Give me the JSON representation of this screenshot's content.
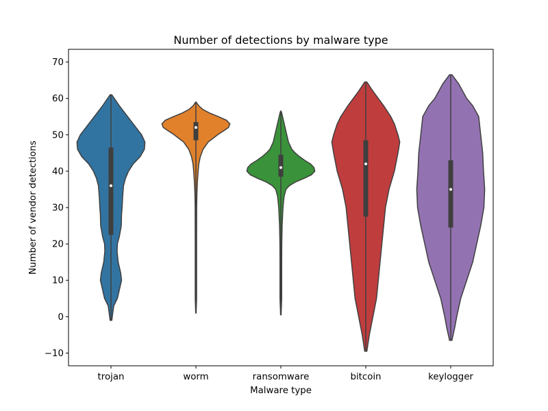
{
  "chart_data": {
    "type": "violin",
    "title": "Number of detections by malware type",
    "xlabel": "Malware type",
    "ylabel": "Number of vendor detections",
    "ylim": [
      -13.5,
      73.5
    ],
    "yticks": [
      -10,
      0,
      10,
      20,
      30,
      40,
      50,
      60,
      70
    ],
    "categories": [
      "trojan",
      "worm",
      "ransomware",
      "bitcoin",
      "keylogger"
    ],
    "violins": [
      {
        "category": "trojan",
        "color": "#3274a1",
        "median": 36,
        "q1": 22.5,
        "q3": 46.5,
        "min": -1,
        "max": 61,
        "profile": [
          [
            -1,
            0.3
          ],
          [
            3,
            1
          ],
          [
            5,
            2.3
          ],
          [
            8,
            3.2
          ],
          [
            10,
            3.8
          ],
          [
            12,
            3.5
          ],
          [
            15,
            2.6
          ],
          [
            18,
            2.2
          ],
          [
            20,
            2.3
          ],
          [
            22,
            3
          ],
          [
            25,
            3.7
          ],
          [
            28,
            3.8
          ],
          [
            30,
            4
          ],
          [
            33,
            4.2
          ],
          [
            36,
            4.5
          ],
          [
            38,
            5.2
          ],
          [
            40,
            6.3
          ],
          [
            42,
            8
          ],
          [
            44,
            10.5
          ],
          [
            46,
            12
          ],
          [
            48,
            12.2
          ],
          [
            50,
            11
          ],
          [
            52,
            9
          ],
          [
            54,
            7
          ],
          [
            56,
            5
          ],
          [
            58,
            3
          ],
          [
            60,
            1.2
          ],
          [
            61,
            0.3
          ]
        ]
      },
      {
        "category": "worm",
        "color": "#e1812c",
        "median": 52,
        "q1": 48.5,
        "q3": 53.5,
        "min": 1,
        "max": 59,
        "profile": [
          [
            1,
            0.3
          ],
          [
            5,
            1
          ],
          [
            10,
            1
          ],
          [
            20,
            1
          ],
          [
            30,
            1.1
          ],
          [
            34,
            1.5
          ],
          [
            37,
            2.2
          ],
          [
            40,
            3.3
          ],
          [
            42,
            4.3
          ],
          [
            44,
            6.5
          ],
          [
            46,
            10.5
          ],
          [
            48,
            18
          ],
          [
            49,
            25
          ],
          [
            50,
            32
          ],
          [
            51,
            40
          ],
          [
            52,
            48
          ],
          [
            53,
            50
          ],
          [
            54,
            45
          ],
          [
            55,
            33
          ],
          [
            56,
            20
          ],
          [
            57,
            10
          ],
          [
            58,
            4
          ],
          [
            59,
            0.3
          ]
        ]
      },
      {
        "category": "ransomware",
        "color": "#3a923a",
        "median": 41,
        "q1": 38.5,
        "q3": 44.5,
        "min": 0.5,
        "max": 56.5,
        "profile": [
          [
            0.5,
            0.3
          ],
          [
            5,
            1
          ],
          [
            10,
            1
          ],
          [
            15,
            1
          ],
          [
            20,
            1.1
          ],
          [
            25,
            1.5
          ],
          [
            30,
            2.5
          ],
          [
            33,
            3.8
          ],
          [
            35,
            6
          ],
          [
            36,
            10
          ],
          [
            37,
            17
          ],
          [
            38,
            27
          ],
          [
            39,
            36
          ],
          [
            40,
            40
          ],
          [
            41,
            39
          ],
          [
            42,
            35
          ],
          [
            43,
            28
          ],
          [
            44,
            22
          ],
          [
            45,
            17
          ],
          [
            46,
            13
          ],
          [
            48,
            9
          ],
          [
            50,
            7
          ],
          [
            52,
            5
          ],
          [
            54,
            3
          ],
          [
            56,
            1
          ],
          [
            56.5,
            0.3
          ]
        ]
      },
      {
        "category": "bitcoin",
        "color": "#c03d3e",
        "median": 42,
        "q1": 27.5,
        "q3": 48.5,
        "min": -9.5,
        "max": 64.5,
        "profile": [
          [
            -9.5,
            0.3
          ],
          [
            -5,
            1
          ],
          [
            0,
            2
          ],
          [
            5,
            3
          ],
          [
            10,
            3.5
          ],
          [
            15,
            4
          ],
          [
            20,
            4.5
          ],
          [
            25,
            5
          ],
          [
            30,
            5.5
          ],
          [
            35,
            6.5
          ],
          [
            40,
            8
          ],
          [
            45,
            9
          ],
          [
            48,
            9.5
          ],
          [
            50,
            9
          ],
          [
            53,
            8
          ],
          [
            55,
            7
          ],
          [
            58,
            5
          ],
          [
            60,
            3.5
          ],
          [
            62,
            2
          ],
          [
            64.5,
            0.3
          ]
        ]
      },
      {
        "category": "keylogger",
        "color": "#9372b2",
        "median": 35,
        "q1": 24.5,
        "q3": 43,
        "min": -6.5,
        "max": 66.5,
        "profile": [
          [
            -6.5,
            0.3
          ],
          [
            -3,
            1
          ],
          [
            0,
            1.5
          ],
          [
            5,
            2.5
          ],
          [
            10,
            4
          ],
          [
            15,
            5.5
          ],
          [
            20,
            6.5
          ],
          [
            25,
            7.5
          ],
          [
            30,
            8.3
          ],
          [
            35,
            8.5
          ],
          [
            40,
            8.2
          ],
          [
            45,
            8
          ],
          [
            50,
            7.5
          ],
          [
            55,
            7
          ],
          [
            58,
            5.5
          ],
          [
            60,
            4
          ],
          [
            62,
            3
          ],
          [
            64,
            2
          ],
          [
            66.5,
            0.3
          ]
        ]
      }
    ]
  }
}
